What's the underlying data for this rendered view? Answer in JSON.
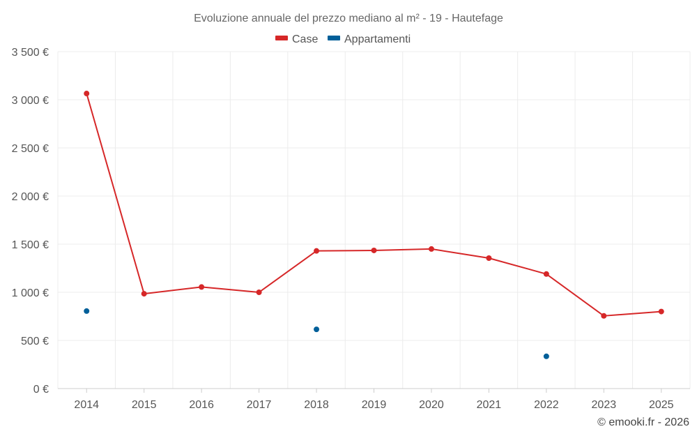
{
  "chart_data": {
    "type": "line",
    "title": "Evoluzione annuale del prezzo mediano al m² - 19 - Hautefage",
    "categories": [
      "2014",
      "2015",
      "2016",
      "2017",
      "2018",
      "2019",
      "2020",
      "2021",
      "2022",
      "2023",
      "2025"
    ],
    "series": [
      {
        "name": "Case",
        "color": "#d62728",
        "style": "line-with-markers",
        "values": [
          3065,
          985,
          1055,
          1000,
          1430,
          1435,
          1450,
          1355,
          1190,
          755,
          800
        ]
      },
      {
        "name": "Appartamenti",
        "color": "#005f99",
        "style": "markers-only",
        "values": [
          805,
          null,
          null,
          null,
          615,
          null,
          null,
          null,
          335,
          null,
          null
        ]
      }
    ],
    "ylim": [
      0,
      3500
    ],
    "yticks": [
      0,
      500,
      1000,
      1500,
      2000,
      2500,
      3000,
      3500
    ],
    "ytick_labels": [
      "0 €",
      "500 €",
      "1 000 €",
      "1 500 €",
      "2 000 €",
      "2 500 €",
      "3 000 €",
      "3 500 €"
    ],
    "grid": true,
    "legend_position": "top-center"
  },
  "credit": "© emooki.fr - 2026"
}
